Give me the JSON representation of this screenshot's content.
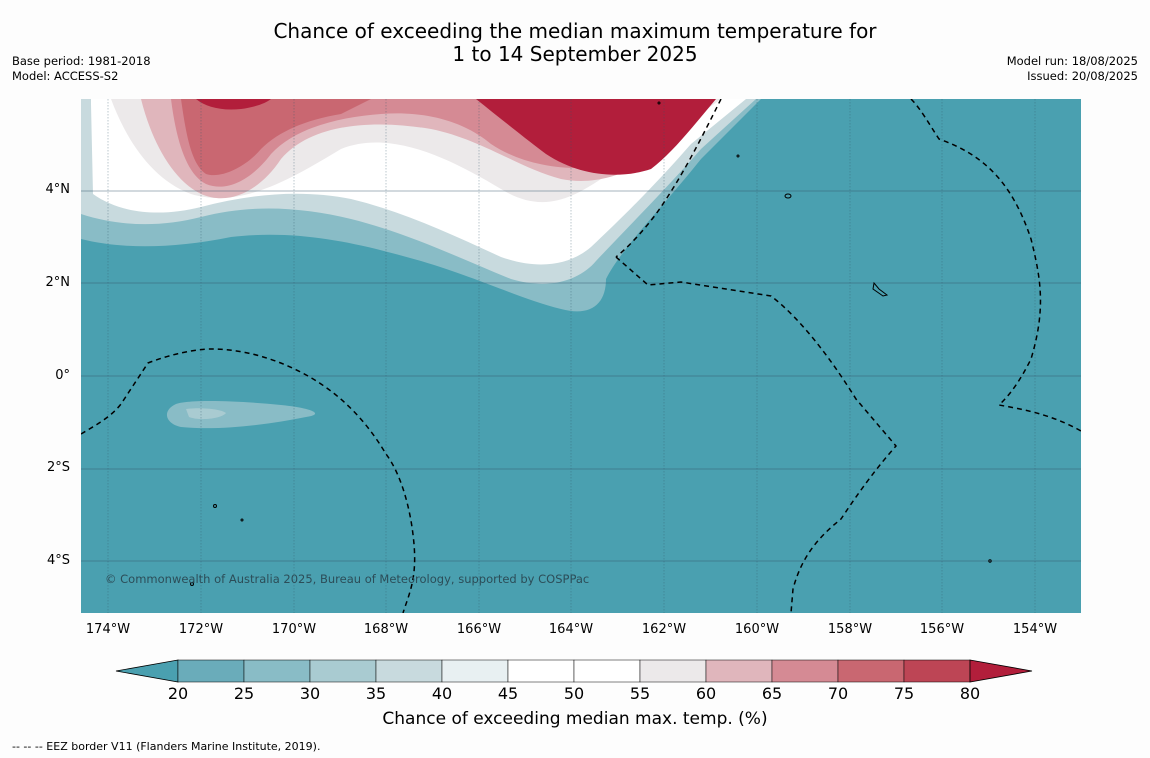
{
  "title_line1": "Chance of exceeding the median maximum temperature for",
  "title_line2": "1 to 14 September 2025",
  "left_meta": {
    "base_period": "Base period: 1981-2018",
    "model": "Model: ACCESS-S2"
  },
  "right_meta": {
    "model_run": "Model run: 18/08/2025",
    "issued": "Issued: 20/08/2025"
  },
  "lat_labels": [
    "4°N",
    "2°N",
    "0°",
    "2°S",
    "4°S"
  ],
  "lon_labels": [
    "174°W",
    "172°W",
    "170°W",
    "168°W",
    "166°W",
    "164°W",
    "162°W",
    "160°W",
    "158°W",
    "156°W",
    "154°W"
  ],
  "copyright": "© Commonwealth of Australia 2025, Bureau of Meteorology, supported by COSPPac",
  "colorbar": {
    "ticks": [
      "20",
      "25",
      "30",
      "35",
      "40",
      "45",
      "50",
      "55",
      "60",
      "65",
      "70",
      "75",
      "80"
    ],
    "colors": [
      "#4aa0b0",
      "#6aacba",
      "#89bcc6",
      "#a9cbd1",
      "#c8dade",
      "#e8f0f2",
      "#ffffff",
      "#ffffff",
      "#ece9ea",
      "#e0b6bc",
      "#d58a94",
      "#c96771",
      "#bd4555",
      "#b21e3b"
    ],
    "title": "Chance of exceeding median max. temp. (%)"
  },
  "footer": "--  --  -- EEZ border V11 (Flanders Marine Institute, 2019)."
}
